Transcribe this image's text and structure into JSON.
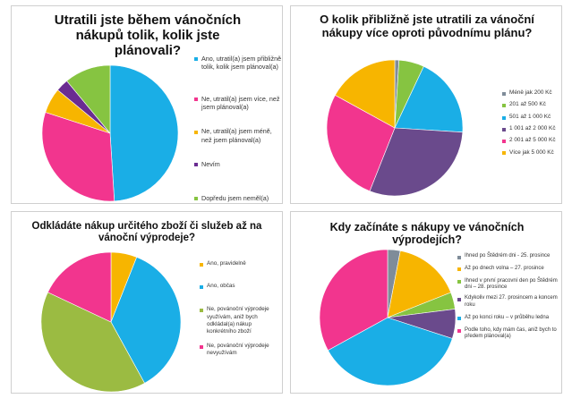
{
  "chart_data": [
    {
      "type": "pie",
      "title": "Utratili jste během vánočních nákupů tolik, kolik jste plánovali?",
      "labels": [
        "Ano, utratil(a) jsem přibližně tolik, kolik jsem plánoval(a)",
        "Ne, utratil(a) jsem více, než jsem plánoval(a)",
        "Ne, utratil(a) jsem méně, než jsem plánoval(a)",
        "Nevím",
        "Dopředu jsem neměl(a) představu o tom, kolik plánuji utratit"
      ],
      "values": [
        49,
        31,
        6,
        3,
        11
      ],
      "colors": [
        "#1aaee6",
        "#f2358e",
        "#f7b500",
        "#6a2c91",
        "#86c441"
      ]
    },
    {
      "type": "pie",
      "title": "O kolik přibližně jste utratili za vánoční nákupy více oproti původnímu plánu?",
      "labels": [
        "Méně jak 200 Kč",
        "201 až 500 Kč",
        "501 až 1 000 Kč",
        "1 001 až 2 000 Kč",
        "2 001 až 5 000 Kč",
        "Více jak 5 000 Kč"
      ],
      "values": [
        1,
        6,
        19,
        30,
        27,
        17
      ],
      "colors": [
        "#7f8c99",
        "#86c441",
        "#1aaee6",
        "#6a4a8c",
        "#f2358e",
        "#f7b500"
      ]
    },
    {
      "type": "pie",
      "title": "Odkládáte nákup určitého zboží či služeb až na vánoční výprodeje?",
      "labels": [
        "Ano, pravidelně",
        "Ano, občas",
        "Ne, povánoční výprodeje využívám, aniž bych odkládal(a) nákup konkrétního zboží",
        "Ne, povánoční výprodeje nevyužívám"
      ],
      "values": [
        6,
        36,
        40,
        18
      ],
      "colors": [
        "#f7b500",
        "#1aaee6",
        "#9bbb42",
        "#f2358e"
      ]
    },
    {
      "type": "pie",
      "title": "Kdy začínáte s nákupy ve vánočních výprodejích?",
      "labels": [
        "Ihned po Štědrém dni - 25. prosince",
        "Až po dnech volna – 27. prosince",
        "Ihned v první pracovní den po Štědrém dni – 28. prosince",
        "Kdykoliv mezi 27. prosincem a koncem roku",
        "Až po konci roku – v průběhu ledna",
        "Podle toho, kdy mám čas, aniž bych to předem plánoval(a)"
      ],
      "values": [
        3,
        16,
        4,
        7,
        37,
        33
      ],
      "colors": [
        "#7f8c99",
        "#f7b500",
        "#86c441",
        "#6a4a8c",
        "#1aaee6",
        "#f2358e"
      ]
    }
  ]
}
